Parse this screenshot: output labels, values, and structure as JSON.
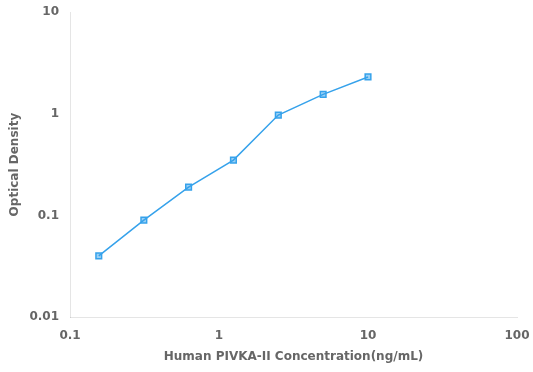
{
  "chart_data": {
    "type": "line",
    "x": [
      0.156,
      0.313,
      0.625,
      1.25,
      2.5,
      5.0,
      10.0
    ],
    "values": [
      0.04,
      0.09,
      0.19,
      0.35,
      0.97,
      1.55,
      2.3
    ],
    "xlabel": "Human PIVKA-II Concentration(ng/mL)",
    "ylabel": "Optical Density",
    "xlim": [
      0.1,
      100
    ],
    "ylim": [
      0.01,
      10
    ],
    "xticks": [
      0.1,
      1,
      10,
      100
    ],
    "yticks": [
      0.01,
      0.1,
      1,
      10
    ],
    "log": true,
    "grid": false,
    "marker": "square"
  }
}
